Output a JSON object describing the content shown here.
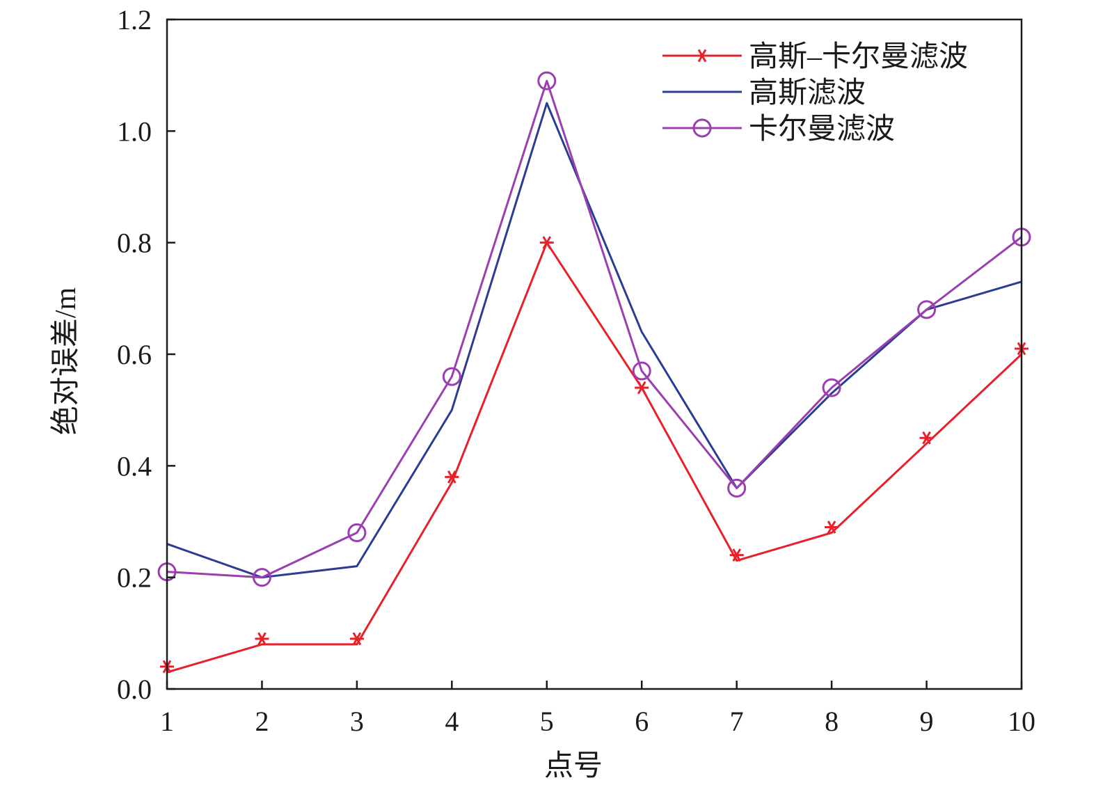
{
  "chart_data": {
    "type": "line",
    "title": "",
    "xlabel": "点号",
    "ylabel": "绝对误差/m",
    "x": [
      1,
      2,
      3,
      4,
      5,
      6,
      7,
      8,
      9,
      10
    ],
    "x_tick_labels": [
      "1",
      "2",
      "3",
      "4",
      "5",
      "6",
      "7",
      "8",
      "9",
      "10"
    ],
    "xlim": [
      1,
      10
    ],
    "ylim": [
      0,
      1.2
    ],
    "y_ticks": [
      0.0,
      0.2,
      0.4,
      0.6,
      0.8,
      1.0,
      1.2
    ],
    "y_tick_labels": [
      "0.0",
      "0.2",
      "0.4",
      "0.6",
      "0.8",
      "1.0",
      "1.2"
    ],
    "grid": false,
    "legend_position": "top-right",
    "series": [
      {
        "name": "高斯–卡尔曼滤波",
        "color": "#e8202a",
        "marker": "asterisk",
        "values": [
          0.03,
          0.08,
          0.08,
          0.37,
          0.8,
          0.54,
          0.23,
          0.28,
          0.44,
          0.6
        ],
        "marker_values": [
          0.04,
          0.09,
          0.09,
          0.38,
          0.8,
          0.54,
          0.24,
          0.29,
          0.45,
          0.61
        ]
      },
      {
        "name": "高斯滤波",
        "color": "#2b3d91",
        "marker": "none",
        "values": [
          0.26,
          0.2,
          0.22,
          0.5,
          1.05,
          0.64,
          0.36,
          0.53,
          0.68,
          0.73
        ]
      },
      {
        "name": "卡尔曼滤波",
        "color": "#9b3fb0",
        "marker": "circle",
        "values": [
          0.21,
          0.2,
          0.28,
          0.56,
          1.09,
          0.57,
          0.36,
          0.54,
          0.68,
          0.81
        ]
      }
    ]
  }
}
